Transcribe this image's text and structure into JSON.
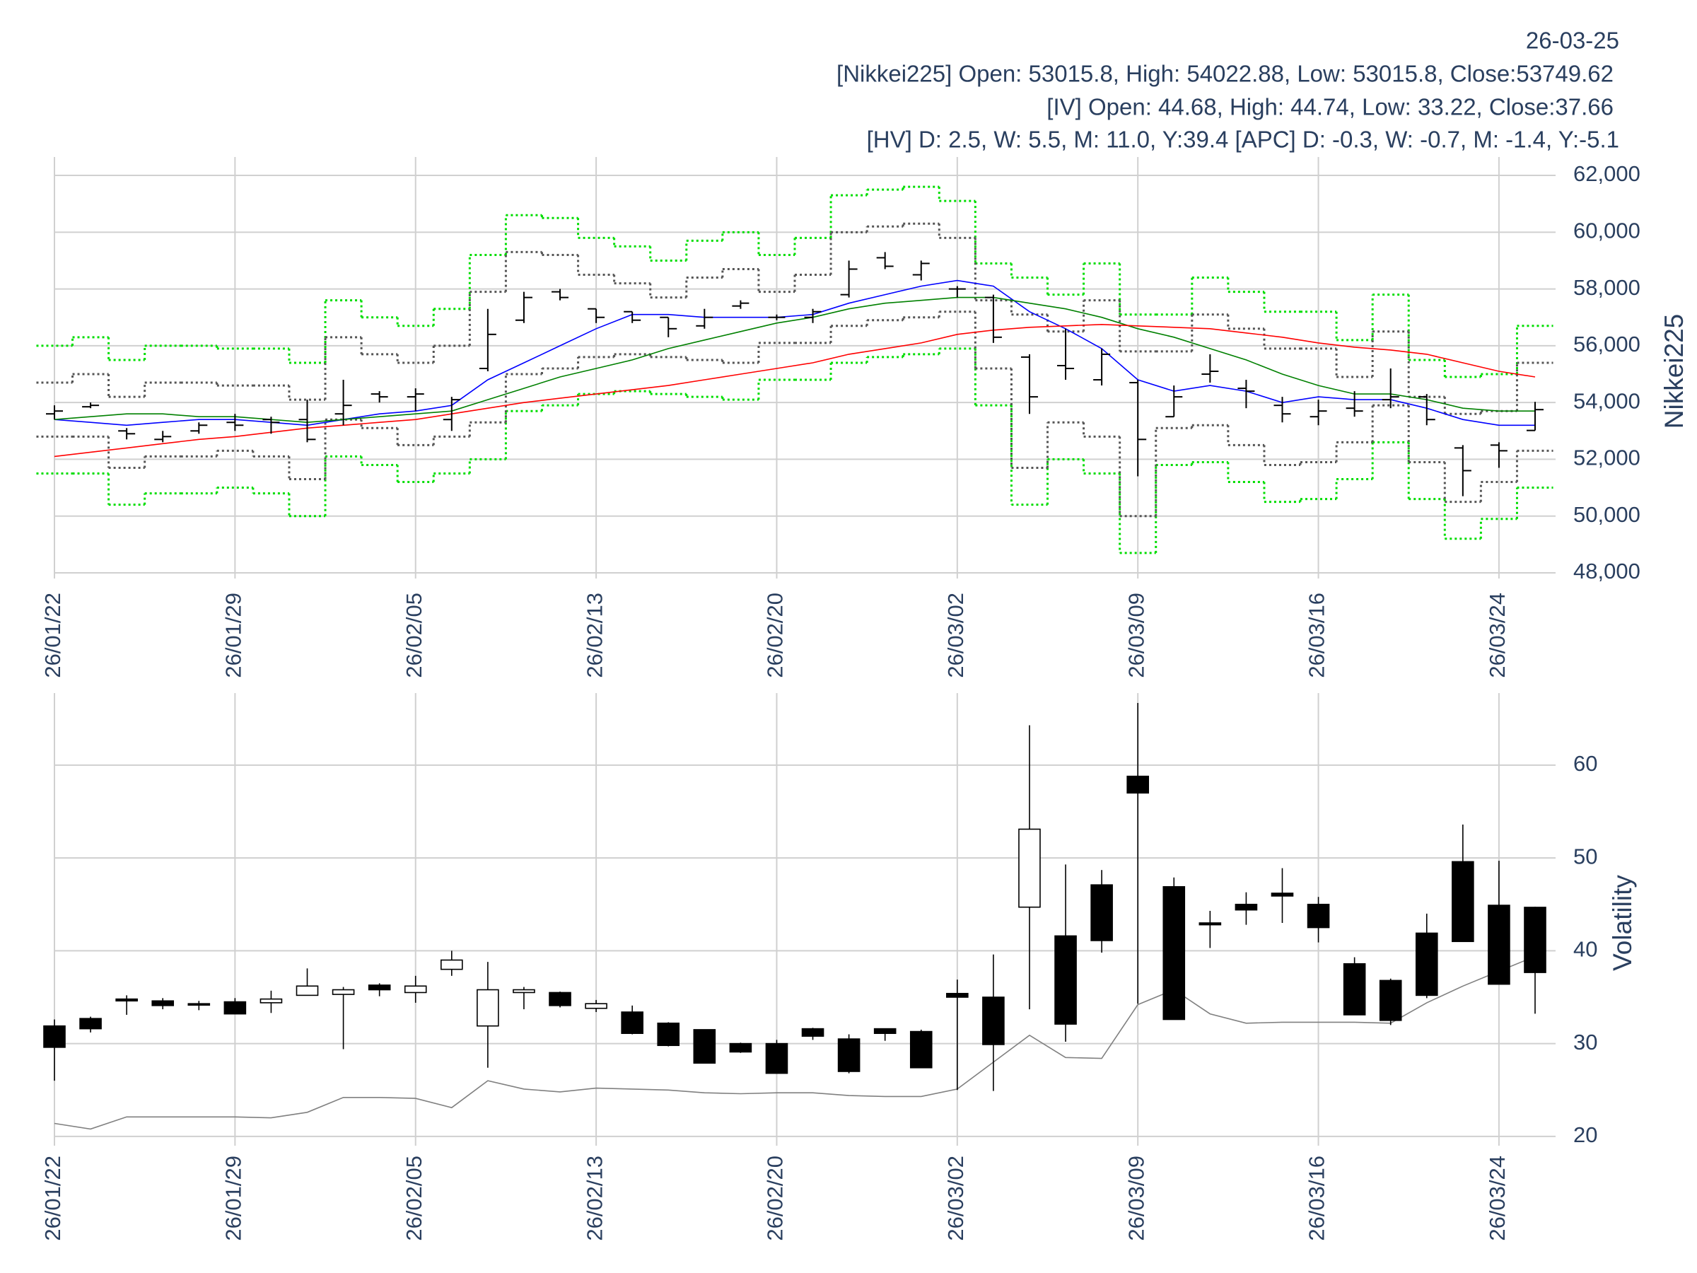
{
  "header": {
    "date": "26-03-25",
    "lines": [
      "[Nikkei225] Open: 53015.8, High: 54022.88, Low: 53015.8, Close:53749.62",
      "[IV] Open: 44.68, High: 44.74, Low: 33.22, Close:37.66",
      "[HV] D: 2.5, W: 5.5, M: 11.0, Y:39.4 [APC] D: -0.3, W: -0.7, M: -1.4, Y:-5.1"
    ]
  },
  "chart_data": [
    {
      "type": "ohlc",
      "y_label": "Nikkei225",
      "grid": true,
      "categories": [
        "26/01/22",
        null,
        null,
        null,
        null,
        "26/01/29",
        null,
        null,
        null,
        null,
        "26/02/05",
        null,
        null,
        null,
        null,
        "26/02/13",
        null,
        null,
        null,
        null,
        "26/02/20",
        null,
        null,
        null,
        null,
        "26/03/02",
        null,
        null,
        null,
        null,
        "26/03/09",
        null,
        null,
        null,
        null,
        "26/03/16",
        null,
        null,
        null,
        null,
        "26/03/24",
        null
      ],
      "ylim": [
        47800,
        62400
      ],
      "yticks": [
        {
          "value": 48000,
          "label": "48,000"
        },
        {
          "value": 50000,
          "label": "50,000"
        },
        {
          "value": 52000,
          "label": "52,000"
        },
        {
          "value": 54000,
          "label": "54,000"
        },
        {
          "value": 56000,
          "label": "56,000"
        },
        {
          "value": 58000,
          "label": "58,000"
        },
        {
          "value": 60000,
          "label": "60,000"
        },
        {
          "value": 62000,
          "label": "62,000"
        }
      ],
      "color": "#000000",
      "open": [
        53600,
        53850,
        53000,
        52700,
        53000,
        53300,
        53400,
        53400,
        53600,
        54300,
        54200,
        53400,
        55200,
        56900,
        57900,
        57300,
        57200,
        57000,
        56700,
        57400,
        57000,
        57000,
        57800,
        59100,
        58500,
        58000,
        57700,
        55600,
        55300,
        54800,
        54700,
        53500,
        55000,
        54500,
        53900,
        53500,
        53800,
        54100,
        54200,
        52400,
        52500,
        53015.8
      ],
      "high": [
        53900,
        54000,
        53100,
        53000,
        53300,
        53600,
        53500,
        54100,
        54800,
        54400,
        54500,
        54200,
        57300,
        57900,
        58000,
        57300,
        57200,
        57000,
        57300,
        57600,
        57100,
        57300,
        59000,
        59300,
        59000,
        58100,
        57800,
        55700,
        56600,
        55900,
        54800,
        54600,
        55700,
        54800,
        54200,
        54100,
        54400,
        55200,
        54300,
        52500,
        52600,
        54022.88
      ],
      "low": [
        53400,
        53800,
        52700,
        52600,
        52900,
        53000,
        52900,
        52600,
        53200,
        54000,
        53700,
        53000,
        55100,
        56800,
        57600,
        56800,
        56800,
        56300,
        56600,
        57300,
        56900,
        56800,
        57700,
        58700,
        58300,
        57700,
        56100,
        53600,
        54800,
        54600,
        51400,
        53500,
        54700,
        53800,
        53300,
        53200,
        53500,
        53800,
        53200,
        50700,
        51700,
        53015.8
      ],
      "close": [
        53700,
        53900,
        52900,
        52800,
        53200,
        53200,
        53300,
        52700,
        53900,
        54200,
        54300,
        54100,
        56400,
        57700,
        57700,
        57000,
        56900,
        56600,
        57000,
        57500,
        57000,
        57200,
        58700,
        58800,
        58900,
        58000,
        56300,
        54200,
        55200,
        55700,
        52700,
        54200,
        55100,
        54400,
        53600,
        53700,
        53700,
        54200,
        53400,
        51600,
        52300,
        53749.62
      ],
      "lines": [
        {
          "color": "#0000ff",
          "values": [
            53400,
            53300,
            53200,
            53300,
            53400,
            53400,
            53300,
            53200,
            53400,
            53600,
            53700,
            53900,
            54800,
            55400,
            56000,
            56600,
            57100,
            57100,
            57000,
            57000,
            57000,
            57100,
            57500,
            57800,
            58100,
            58300,
            58100,
            57200,
            56600,
            55900,
            54800,
            54400,
            54600,
            54400,
            54000,
            54200,
            54100,
            54100,
            53800,
            53400,
            53200,
            53200
          ]
        },
        {
          "color": "#008000",
          "values": [
            53400,
            53500,
            53600,
            53600,
            53500,
            53500,
            53400,
            53300,
            53400,
            53500,
            53600,
            53700,
            54100,
            54500,
            54900,
            55200,
            55500,
            55900,
            56200,
            56500,
            56800,
            57000,
            57300,
            57500,
            57600,
            57700,
            57700,
            57500,
            57300,
            57000,
            56600,
            56300,
            55900,
            55500,
            55000,
            54600,
            54300,
            54300,
            54100,
            53800,
            53700,
            53700
          ]
        },
        {
          "color": "#ff0000",
          "values": [
            52100,
            52250,
            52400,
            52550,
            52700,
            52800,
            52950,
            53100,
            53200,
            53300,
            53400,
            53600,
            53800,
            54000,
            54150,
            54300,
            54450,
            54600,
            54800,
            55000,
            55200,
            55400,
            55700,
            55900,
            56100,
            56400,
            56550,
            56650,
            56700,
            56750,
            56700,
            56650,
            56600,
            56450,
            56300,
            56100,
            55950,
            55850,
            55700,
            55400,
            55100,
            54900
          ]
        }
      ],
      "bands": [
        {
          "color": "#00dd00",
          "values": [
            56000,
            56300,
            55500,
            56000,
            56000,
            55900,
            55900,
            55400,
            57600,
            57000,
            56700,
            57300,
            59200,
            60600,
            60500,
            59800,
            59500,
            59000,
            59700,
            60000,
            59200,
            59800,
            61300,
            61500,
            61600,
            61100,
            58900,
            58400,
            57800,
            58900,
            57100,
            57100,
            58400,
            57900,
            57200,
            57200,
            56200,
            57800,
            55500,
            54900,
            55000,
            56700
          ]
        },
        {
          "color": "#00dd00",
          "values": [
            51500,
            51500,
            50400,
            50800,
            50800,
            51000,
            50800,
            50000,
            52100,
            51800,
            51200,
            51500,
            52000,
            53700,
            53900,
            54300,
            54400,
            54300,
            54200,
            54100,
            54800,
            54800,
            55400,
            55600,
            55700,
            55900,
            53900,
            50400,
            52000,
            51500,
            48700,
            51800,
            51900,
            51200,
            50500,
            50600,
            51300,
            52600,
            50600,
            49200,
            49900,
            51000
          ]
        },
        {
          "color": "#555555",
          "values": [
            54700,
            55000,
            54200,
            54700,
            54700,
            54600,
            54600,
            54100,
            56300,
            55700,
            55400,
            56000,
            57900,
            59300,
            59200,
            58500,
            58200,
            57700,
            58400,
            58700,
            57900,
            58500,
            60000,
            60200,
            60300,
            59800,
            57600,
            57100,
            56500,
            57600,
            55800,
            55800,
            57100,
            56600,
            55900,
            55900,
            54900,
            56500,
            54200,
            53600,
            53700,
            55400
          ]
        },
        {
          "color": "#555555",
          "values": [
            52800,
            52800,
            51700,
            52100,
            52100,
            52300,
            52100,
            51300,
            53400,
            53100,
            52500,
            52800,
            53300,
            55000,
            55200,
            55600,
            55700,
            55600,
            55500,
            55400,
            56100,
            56100,
            56700,
            56900,
            57000,
            57200,
            55200,
            51700,
            53300,
            52800,
            50000,
            53100,
            53200,
            52500,
            51800,
            51900,
            52600,
            53900,
            51900,
            50500,
            51200,
            52300
          ]
        }
      ]
    },
    {
      "type": "candlestick",
      "y_label": "Volatility",
      "grid": true,
      "categories": [
        "26/01/22",
        null,
        null,
        null,
        null,
        "26/01/29",
        null,
        null,
        null,
        null,
        "26/02/05",
        null,
        null,
        null,
        null,
        "26/02/13",
        null,
        null,
        null,
        null,
        "26/02/20",
        null,
        null,
        null,
        null,
        "26/03/02",
        null,
        null,
        null,
        null,
        "26/03/09",
        null,
        null,
        null,
        null,
        "26/03/16",
        null,
        null,
        null,
        null,
        "26/03/24",
        null
      ],
      "ylim": [
        19,
        67
      ],
      "yticks": [
        20,
        30,
        40,
        50,
        60
      ],
      "up_color": "#ffffff",
      "down_color": "#000000",
      "color": "#000000",
      "open": [
        31.9,
        32.7,
        34.8,
        34.6,
        34.3,
        34.5,
        34.4,
        35.2,
        35.3,
        36.3,
        35.5,
        38.0,
        31.9,
        35.5,
        35.5,
        33.8,
        33.4,
        32.2,
        31.5,
        30.0,
        30.0,
        31.6,
        30.5,
        31.6,
        31.3,
        35.4,
        35.0,
        44.7,
        41.6,
        47.1,
        58.8,
        46.9,
        43.0,
        45.0,
        46.2,
        45.0,
        38.6,
        36.8,
        41.9,
        49.6,
        44.9,
        44.68
      ],
      "high": [
        32.6,
        32.9,
        35.2,
        34.9,
        34.6,
        34.9,
        35.7,
        38.1,
        36.1,
        36.5,
        37.3,
        40.0,
        38.8,
        36.1,
        35.6,
        34.7,
        34.1,
        32.3,
        31.5,
        30.1,
        30.4,
        31.7,
        31.0,
        31.6,
        31.5,
        36.9,
        39.6,
        64.3,
        49.3,
        48.7,
        66.7,
        47.9,
        44.3,
        46.3,
        48.9,
        45.8,
        39.3,
        37.0,
        44.0,
        53.6,
        49.7,
        44.74
      ],
      "low": [
        26.0,
        31.2,
        33.1,
        33.7,
        33.6,
        33.2,
        33.3,
        35.2,
        29.4,
        35.1,
        34.4,
        37.3,
        27.4,
        33.7,
        33.9,
        33.4,
        31.0,
        29.7,
        27.9,
        29.0,
        26.8,
        30.4,
        26.8,
        30.3,
        27.4,
        25.0,
        24.9,
        33.7,
        30.2,
        39.8,
        34.3,
        32.6,
        40.3,
        42.8,
        43.0,
        40.9,
        33.1,
        32.0,
        34.9,
        41.0,
        36.4,
        33.22
      ],
      "close": [
        29.6,
        31.6,
        34.6,
        34.1,
        34.2,
        33.2,
        34.8,
        36.2,
        35.8,
        35.8,
        36.2,
        39.0,
        35.8,
        35.8,
        34.1,
        34.3,
        31.1,
        29.8,
        27.9,
        29.1,
        26.8,
        30.8,
        27.0,
        31.1,
        27.4,
        35.0,
        29.9,
        53.1,
        32.1,
        41.1,
        57.0,
        32.6,
        42.8,
        44.4,
        45.9,
        42.5,
        33.1,
        32.5,
        35.2,
        41.0,
        36.4,
        37.66
      ],
      "lines": [
        {
          "color": "#808080",
          "values": [
            21.4,
            20.8,
            22.1,
            22.1,
            22.1,
            22.1,
            22.0,
            22.6,
            24.2,
            24.2,
            24.1,
            23.1,
            26.0,
            25.1,
            24.8,
            25.2,
            25.1,
            25.0,
            24.7,
            24.6,
            24.7,
            24.7,
            24.4,
            24.3,
            24.3,
            25.1,
            28.0,
            30.9,
            28.5,
            28.4,
            34.2,
            35.8,
            33.2,
            32.2,
            32.3,
            32.3,
            32.3,
            32.2,
            34.4,
            36.2,
            37.8,
            39.4
          ]
        }
      ]
    }
  ]
}
